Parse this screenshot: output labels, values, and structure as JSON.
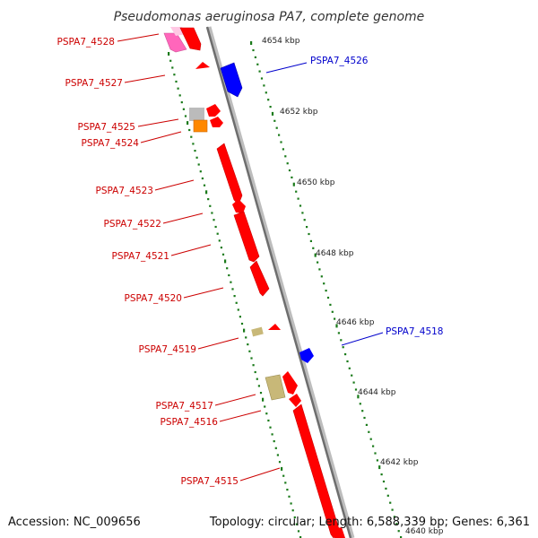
{
  "title": "Pseudomonas aeruginosa PA7, complete genome",
  "accession": "Accession: NC_009656",
  "topology": "Topology: circular; Length: 6,588,339 bp; Genes: 6,361",
  "colors": {
    "forward_label": "#cc0000",
    "reverse_label": "#0000cc",
    "backbone": "#8a8a8a",
    "tick": "#1a7a1a",
    "cds_red": "#ff0000",
    "cds_blue": "#0000ff",
    "cds_pink": "#ff66bb",
    "cds_khaki": "#c8b878",
    "cds_orange": "#ff8800",
    "cds_gray": "#bbbbbb"
  },
  "scale_labels": [
    "4654 kbp",
    "4652 kbp",
    "4650 kbp",
    "4648 kbp",
    "4646 kbp",
    "4644 kbp",
    "4642 kbp",
    "4640 kbp"
  ],
  "genes": [
    {
      "label": "PSPA7_4528",
      "strand": "forward"
    },
    {
      "label": "PSPA7_4527",
      "strand": "forward"
    },
    {
      "label": "PSPA7_4526",
      "strand": "reverse"
    },
    {
      "label": "PSPA7_4525",
      "strand": "forward"
    },
    {
      "label": "PSPA7_4524",
      "strand": "forward"
    },
    {
      "label": "PSPA7_4523",
      "strand": "forward"
    },
    {
      "label": "PSPA7_4522",
      "strand": "forward"
    },
    {
      "label": "PSPA7_4521",
      "strand": "forward"
    },
    {
      "label": "PSPA7_4520",
      "strand": "forward"
    },
    {
      "label": "PSPA7_4519",
      "strand": "forward"
    },
    {
      "label": "PSPA7_4518",
      "strand": "reverse"
    },
    {
      "label": "PSPA7_4517",
      "strand": "forward"
    },
    {
      "label": "PSPA7_4516",
      "strand": "forward"
    },
    {
      "label": "PSPA7_4515",
      "strand": "forward"
    }
  ]
}
